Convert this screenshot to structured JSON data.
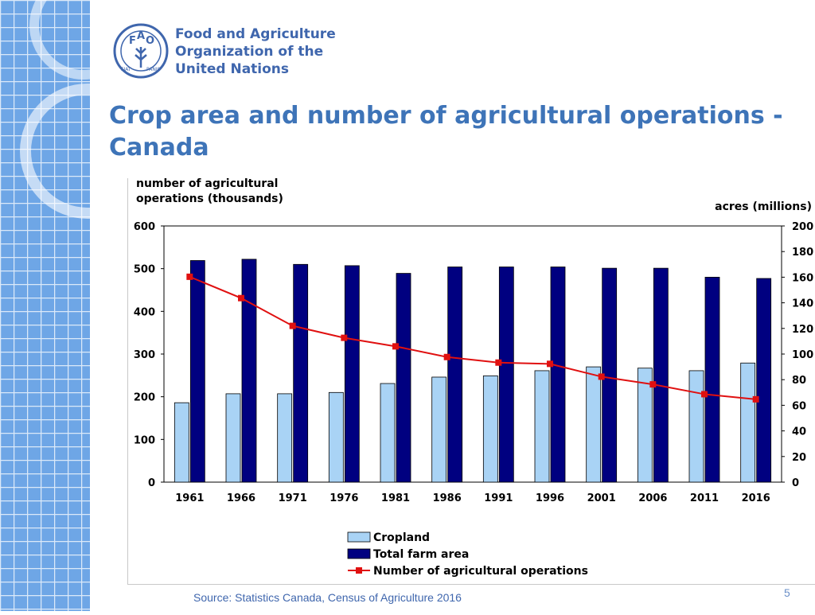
{
  "slide": {
    "org_line1": "Food and Agriculture",
    "org_line2": "Organization of the",
    "org_line3": "United Nations",
    "logo_letters": [
      "F",
      "A",
      "O"
    ],
    "logo_ring_text": [
      "FIAT",
      "PANIS"
    ],
    "title": "Crop area and number of agricultural operations - Canada",
    "source": "Source: Statistics Canada, Census of Agriculture 2016",
    "page_number": "5"
  },
  "colors": {
    "side_strip": "#6ea6e6",
    "brand_blue": "#3f66ad",
    "title_blue": "#3e74b8",
    "cropland": "#a9d3f5",
    "total_farm_area": "#000080",
    "operations_line": "#e01010"
  },
  "chart_data": {
    "type": "bar",
    "title": "",
    "left_axis_label": "number of agricultural operations (thousands)",
    "right_axis_label": "acres (millions)",
    "categories": [
      "1961",
      "1966",
      "1971",
      "1976",
      "1981",
      "1986",
      "1991",
      "1996",
      "2001",
      "2006",
      "2011",
      "2016"
    ],
    "left_axis": {
      "ylim": [
        0,
        600
      ],
      "ticks": [
        "0",
        "100",
        "200",
        "300",
        "400",
        "500",
        "600"
      ]
    },
    "right_axis": {
      "ylim": [
        0,
        200
      ],
      "ticks": [
        "0",
        "20",
        "40",
        "60",
        "80",
        "100",
        "120",
        "140",
        "160",
        "180",
        "200"
      ]
    },
    "series": [
      {
        "name": "Cropland",
        "type": "bar",
        "axis": "right",
        "values": [
          62,
          69,
          69,
          70,
          77,
          82,
          83,
          87,
          90,
          89,
          87,
          93
        ]
      },
      {
        "name": "Total farm area",
        "type": "bar",
        "axis": "right",
        "values": [
          173,
          174,
          170,
          169,
          163,
          168,
          168,
          168,
          167,
          167,
          160,
          159
        ]
      },
      {
        "name": "Number of agricultural operations",
        "type": "line",
        "axis": "left",
        "values": [
          481,
          431,
          366,
          338,
          318,
          293,
          280,
          277,
          247,
          229,
          206,
          194
        ]
      }
    ],
    "grid": false,
    "legend": "bottom-center"
  }
}
